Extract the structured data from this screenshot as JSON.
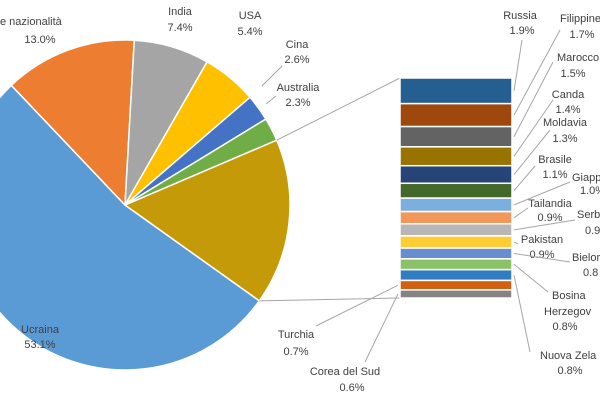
{
  "chart_data": {
    "type": "pie-of-bar",
    "slices": {
      "categories": [
        "Ucraina",
        "e nazionalità",
        "India",
        "USA",
        "Cina",
        "Australia"
      ],
      "values": [
        53.1,
        13.0,
        7.4,
        5.4,
        2.6,
        2.3
      ],
      "value_labels": [
        "53.1%",
        "13.0%",
        "7.4%",
        "5.4%",
        "2.6%",
        "2.3%"
      ],
      "colors": [
        "#5b9bd5",
        "#ed7d31",
        "#a5a5a5",
        "#ffc000",
        "#4472c4",
        "#70ad47"
      ]
    },
    "other_color": "#c59a09",
    "bar": {
      "categories": [
        "Russia",
        "Filippine",
        "Marocco",
        "Canda",
        "Moldavia",
        "Brasile",
        "Giapp",
        "Tailandia",
        "Serb",
        "Pakistan",
        "Bielor",
        "Bosina Herzegov",
        "Nuova Zela",
        "Turchia",
        "Corea del Sud"
      ],
      "values": [
        1.9,
        1.7,
        1.5,
        1.4,
        1.3,
        1.1,
        1.0,
        0.9,
        0.9,
        0.9,
        0.8,
        0.8,
        0.8,
        0.7,
        0.6
      ],
      "value_labels": [
        "1.9%",
        "1.7%",
        "1.5%",
        "1.4%",
        "1.3%",
        "1.1%",
        "1.0%",
        "0.9%",
        "0.9",
        "0.9%",
        "0.8",
        "0.8%",
        "0.8%",
        "0.7%",
        "0.6%"
      ],
      "colors": [
        "#255e91",
        "#9e480e",
        "#636363",
        "#997300",
        "#264478",
        "#43682b",
        "#7cafdd",
        "#f1975a",
        "#b7b7b7",
        "#ffcd33",
        "#698ed0",
        "#8cc168",
        "#327dc2",
        "#d26012",
        "#848484"
      ]
    }
  }
}
